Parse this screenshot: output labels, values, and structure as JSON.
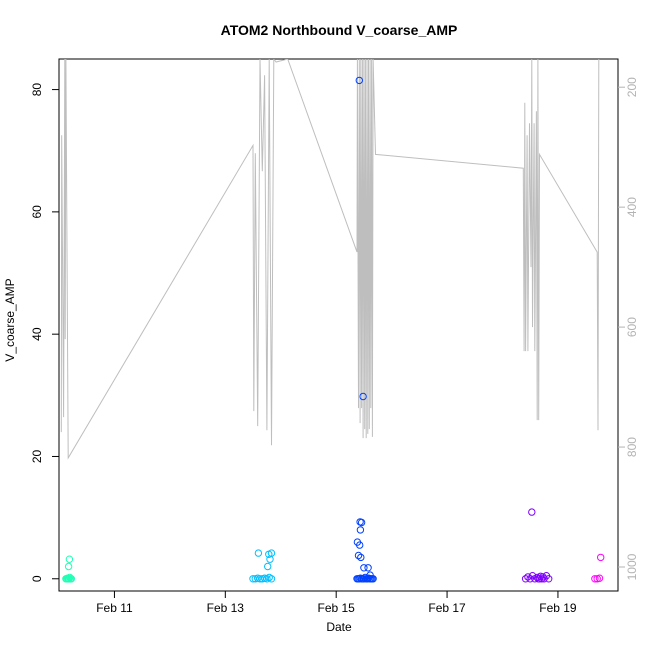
{
  "chart_data": {
    "type": "scatter",
    "title": "ATOM2 Northbound V_coarse_AMP",
    "xlabel": "Date",
    "ylabel": "V_coarse_AMP",
    "x_is_date": true,
    "x_ticks": [
      {
        "value": "2015-02-11",
        "label": "Feb 11"
      },
      {
        "value": "2015-02-13",
        "label": "Feb 13"
      },
      {
        "value": "2015-02-15",
        "label": "Feb 15"
      },
      {
        "value": "2015-02-17",
        "label": "Feb 17"
      },
      {
        "value": "2015-02-19",
        "label": "Feb 19"
      }
    ],
    "xlim": [
      "2015-02-10 00:00",
      "2015-02-20 02:00"
    ],
    "ylim": [
      -2,
      85
    ],
    "y_ticks": [
      0,
      20,
      40,
      60,
      80
    ],
    "y2_ticks": [
      200,
      400,
      600,
      800,
      1000
    ],
    "y2_inverted": true,
    "y2lim": [
      1040,
      153
    ],
    "y2_color": "#b3b3b3",
    "grid": false,
    "legend": "none",
    "series": [
      {
        "color": "#1fffb5",
        "points": [
          [
            "2015-02-10 03:00",
            0.0
          ],
          [
            "2015-02-10 03:20",
            0.0
          ],
          [
            "2015-02-10 03:40",
            0.1
          ],
          [
            "2015-02-10 04:00",
            0.0
          ],
          [
            "2015-02-10 04:20",
            0.0
          ],
          [
            "2015-02-10 04:40",
            0.2
          ],
          [
            "2015-02-10 05:00",
            0.0
          ],
          [
            "2015-02-10 05:20",
            0.0
          ],
          [
            "2015-02-10 04:10",
            2.0
          ],
          [
            "2015-02-10 04:30",
            3.2
          ]
        ]
      },
      {
        "color": "#00bfff",
        "points": [
          [
            "2015-02-13 12:00",
            0.0
          ],
          [
            "2015-02-13 13:00",
            0.0
          ],
          [
            "2015-02-13 14:00",
            0.1
          ],
          [
            "2015-02-13 15:00",
            0.0
          ],
          [
            "2015-02-13 16:00",
            0.0
          ],
          [
            "2015-02-13 17:00",
            0.1
          ],
          [
            "2015-02-13 18:00",
            0.0
          ],
          [
            "2015-02-13 19:00",
            0.2
          ],
          [
            "2015-02-13 20:00",
            0.0
          ],
          [
            "2015-02-13 14:20",
            4.2
          ],
          [
            "2015-02-13 18:20",
            2.0
          ],
          [
            "2015-02-13 18:50",
            4.0
          ],
          [
            "2015-02-13 19:20",
            3.2
          ],
          [
            "2015-02-13 20:00",
            4.2
          ]
        ]
      },
      {
        "color": "#0040ff",
        "points": [
          [
            "2015-02-15 09:00",
            0.0
          ],
          [
            "2015-02-15 09:30",
            0.0
          ],
          [
            "2015-02-15 10:00",
            0.0
          ],
          [
            "2015-02-15 10:30",
            0.1
          ],
          [
            "2015-02-15 11:00",
            0.0
          ],
          [
            "2015-02-15 11:30",
            0.0
          ],
          [
            "2015-02-15 12:00",
            0.0
          ],
          [
            "2015-02-15 12:30",
            0.2
          ],
          [
            "2015-02-15 13:00",
            0.0
          ],
          [
            "2015-02-15 13:30",
            0.0
          ],
          [
            "2015-02-15 14:00",
            0.1
          ],
          [
            "2015-02-15 14:30",
            0.0
          ],
          [
            "2015-02-15 15:00",
            0.0
          ],
          [
            "2015-02-15 15:30",
            0.0
          ],
          [
            "2015-02-15 16:00",
            0.0
          ],
          [
            "2015-02-15 09:10",
            6.0
          ],
          [
            "2015-02-15 09:40",
            3.8
          ],
          [
            "2015-02-15 10:10",
            5.5
          ],
          [
            "2015-02-15 10:20",
            9.3
          ],
          [
            "2015-02-15 10:30",
            8.0
          ],
          [
            "2015-02-15 11:00",
            9.2
          ],
          [
            "2015-02-15 10:40",
            3.5
          ],
          [
            "2015-02-15 12:00",
            1.8
          ],
          [
            "2015-02-15 13:50",
            1.8
          ],
          [
            "2015-02-15 14:40",
            0.6
          ],
          [
            "2015-02-15 10:00",
            81.5
          ],
          [
            "2015-02-15 11:40",
            29.8
          ]
        ]
      },
      {
        "color": "#8000ff",
        "points": [
          [
            "2015-02-18 10:00",
            0.0
          ],
          [
            "2015-02-18 11:00",
            0.3
          ],
          [
            "2015-02-18 12:00",
            0.0
          ],
          [
            "2015-02-18 12:40",
            10.9
          ],
          [
            "2015-02-18 13:00",
            0.5
          ],
          [
            "2015-02-18 14:00",
            0.0
          ],
          [
            "2015-02-18 15:00",
            0.2
          ],
          [
            "2015-02-18 16:00",
            0.0
          ],
          [
            "2015-02-18 16:30",
            0.4
          ],
          [
            "2015-02-18 17:00",
            0.0
          ],
          [
            "2015-02-18 17:30",
            0.3
          ],
          [
            "2015-02-18 18:00",
            0.0
          ],
          [
            "2015-02-18 19:00",
            0.5
          ],
          [
            "2015-02-18 20:00",
            0.0
          ],
          [
            "2015-02-18 15:30",
            0.0
          ]
        ]
      },
      {
        "color": "#ff00ff",
        "points": [
          [
            "2015-02-19 16:00",
            0.0
          ],
          [
            "2015-02-19 17:00",
            0.0
          ],
          [
            "2015-02-19 18:00",
            0.1
          ],
          [
            "2015-02-19 18:30",
            3.5
          ]
        ]
      }
    ],
    "secondary_line": {
      "color": "#bebebe",
      "axis": "right",
      "points": [
        [
          "2015-02-10 01:00",
          775
        ],
        [
          "2015-02-10 01:10",
          280
        ],
        [
          "2015-02-10 02:00",
          750
        ],
        [
          "2015-02-10 02:30",
          153
        ],
        [
          "2015-02-10 02:40",
          620
        ],
        [
          "2015-02-10 03:00",
          153
        ],
        [
          "2015-02-10 04:00",
          818
        ],
        [
          "2015-02-13 12:00",
          297
        ],
        [
          "2015-02-13 12:20",
          740
        ],
        [
          "2015-02-13 13:00",
          310
        ],
        [
          "2015-02-13 14:00",
          765
        ],
        [
          "2015-02-13 15:00",
          153
        ],
        [
          "2015-02-13 16:00",
          340
        ],
        [
          "2015-02-13 17:00",
          180
        ],
        [
          "2015-02-13 18:00",
          772
        ],
        [
          "2015-02-13 19:00",
          153
        ],
        [
          "2015-02-13 20:00",
          797
        ],
        [
          "2015-02-13 21:00",
          153
        ],
        [
          "2015-02-13 22:00",
          158
        ],
        [
          "2015-02-14 03:00",
          153
        ],
        [
          "2015-02-15 09:00",
          475
        ],
        [
          "2015-02-15 09:10",
          153
        ],
        [
          "2015-02-15 09:40",
          735
        ],
        [
          "2015-02-15 10:00",
          153
        ],
        [
          "2015-02-15 10:20",
          760
        ],
        [
          "2015-02-15 10:40",
          153
        ],
        [
          "2015-02-15 11:00",
          735
        ],
        [
          "2015-02-15 11:20",
          153
        ],
        [
          "2015-02-15 11:40",
          785
        ],
        [
          "2015-02-15 12:00",
          153
        ],
        [
          "2015-02-15 12:20",
          770
        ],
        [
          "2015-02-15 12:40",
          153
        ],
        [
          "2015-02-15 13:00",
          785
        ],
        [
          "2015-02-15 13:20",
          153
        ],
        [
          "2015-02-15 13:40",
          778
        ],
        [
          "2015-02-15 14:00",
          153
        ],
        [
          "2015-02-15 14:20",
          770
        ],
        [
          "2015-02-15 14:40",
          153
        ],
        [
          "2015-02-15 15:00",
          735
        ],
        [
          "2015-02-15 15:20",
          153
        ],
        [
          "2015-02-15 15:40",
          783
        ],
        [
          "2015-02-15 16:00",
          153
        ],
        [
          "2015-02-15 17:00",
          312
        ],
        [
          "2015-02-18 09:00",
          335
        ],
        [
          "2015-02-18 09:20",
          640
        ],
        [
          "2015-02-18 09:40",
          226
        ],
        [
          "2015-02-18 10:00",
          640
        ],
        [
          "2015-02-18 10:40",
          280
        ],
        [
          "2015-02-18 11:00",
          640
        ],
        [
          "2015-02-18 11:40",
          260
        ],
        [
          "2015-02-18 12:20",
          500
        ],
        [
          "2015-02-18 12:40",
          153
        ],
        [
          "2015-02-18 13:00",
          600
        ],
        [
          "2015-02-18 13:40",
          260
        ],
        [
          "2015-02-18 14:00",
          640
        ],
        [
          "2015-02-18 14:40",
          240
        ],
        [
          "2015-02-18 15:00",
          755
        ],
        [
          "2015-02-18 15:20",
          153
        ],
        [
          "2015-02-18 15:40",
          755
        ],
        [
          "2015-02-18 16:00",
          312
        ],
        [
          "2015-02-19 17:00",
          475
        ],
        [
          "2015-02-19 17:20",
          772
        ],
        [
          "2015-02-19 17:40",
          153
        ]
      ]
    }
  }
}
